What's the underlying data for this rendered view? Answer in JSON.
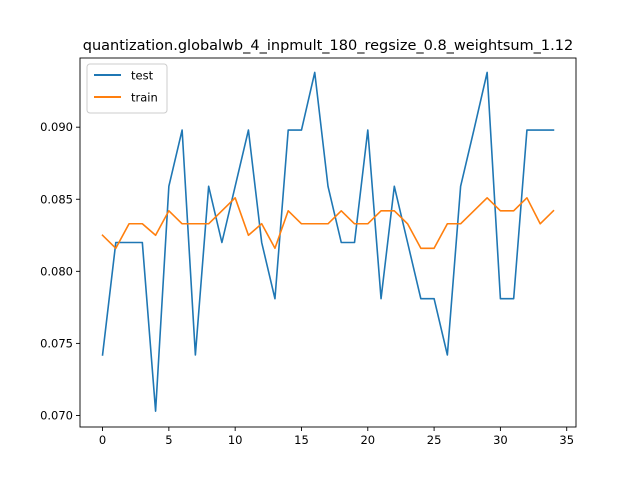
{
  "chart_data": {
    "type": "line",
    "title": "quantization.globalwb_4_inpmult_180_regsize_0.8_weightsum_1.12",
    "xlabel": "",
    "ylabel": "",
    "xlim": [
      -1.7,
      35.7
    ],
    "ylim": [
      0.0692,
      0.0948
    ],
    "x_ticks": [
      0,
      5,
      10,
      15,
      20,
      25,
      30,
      35
    ],
    "y_ticks": [
      0.07,
      0.075,
      0.08,
      0.085,
      0.09
    ],
    "y_tick_labels": [
      "0.070",
      "0.075",
      "0.080",
      "0.085",
      "0.090"
    ],
    "grid": false,
    "legend_position": "top-left",
    "x": [
      0,
      1,
      2,
      3,
      4,
      5,
      6,
      7,
      8,
      9,
      10,
      11,
      12,
      13,
      14,
      15,
      16,
      17,
      18,
      19,
      20,
      21,
      22,
      23,
      24,
      25,
      26,
      27,
      28,
      29,
      30,
      31,
      32,
      33,
      34
    ],
    "series": [
      {
        "name": "test",
        "color": "#1f77b4",
        "values": [
          0.0742,
          0.082,
          0.082,
          0.082,
          0.0703,
          0.0859,
          0.0898,
          0.0742,
          0.0859,
          0.082,
          0.0859,
          0.0898,
          0.082,
          0.0781,
          0.0898,
          0.0898,
          0.0938,
          0.0859,
          0.082,
          0.082,
          0.0898,
          0.0781,
          0.0859,
          0.082,
          0.0781,
          0.0781,
          0.0742,
          0.0859,
          0.0898,
          0.0938,
          0.0781,
          0.0781,
          0.0898,
          0.0898,
          0.0898
        ]
      },
      {
        "name": "train",
        "color": "#ff7f0e",
        "values": [
          0.0825,
          0.0816,
          0.0833,
          0.0833,
          0.0825,
          0.0842,
          0.0833,
          0.0833,
          0.0833,
          0.0842,
          0.0851,
          0.0825,
          0.0833,
          0.0816,
          0.0842,
          0.0833,
          0.0833,
          0.0833,
          0.0842,
          0.0833,
          0.0833,
          0.0842,
          0.0842,
          0.0833,
          0.0816,
          0.0816,
          0.0833,
          0.0833,
          0.0842,
          0.0851,
          0.0842,
          0.0842,
          0.0851,
          0.0833,
          0.0842
        ]
      }
    ]
  }
}
